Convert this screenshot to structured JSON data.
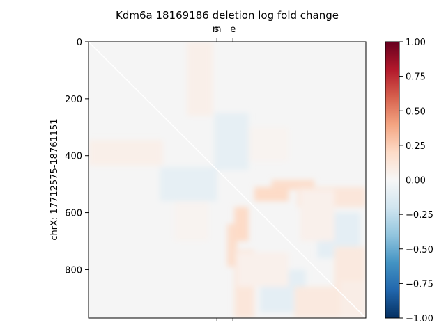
{
  "chart_data": {
    "type": "heatmap",
    "title": "Kdm6a 18169186 deletion log fold change",
    "xlabel": "",
    "ylabel": "chrX: 17712575-18761151",
    "ylim": [
      970,
      0
    ],
    "xlim": [
      0,
      970
    ],
    "yticks": [
      0,
      200,
      400,
      600,
      800
    ],
    "ytick_labels": [
      "0",
      "200",
      "400",
      "600",
      "800"
    ],
    "top_markers": [
      {
        "label": "m",
        "position": 449
      },
      {
        "label": "s",
        "position": 448
      },
      {
        "label": "e",
        "position": 505
      }
    ],
    "colorbar": {
      "cmap": "RdBu_r",
      "range": [
        -1.0,
        1.0
      ],
      "ticks": [
        1.0,
        0.75,
        0.5,
        0.25,
        0.0,
        -0.25,
        -0.5,
        -0.75,
        -1.0
      ],
      "tick_labels": [
        "1.00",
        "0.75",
        "0.50",
        "0.25",
        "0.00",
        "−0.25",
        "−0.50",
        "−0.75",
        "−1.00"
      ]
    },
    "blocks": [
      {
        "x": [
          345,
          435
        ],
        "y": [
          0,
          260
        ],
        "value": 0.06
      },
      {
        "x": [
          0,
          260
        ],
        "y": [
          345,
          435
        ],
        "value": 0.06
      },
      {
        "x": [
          440,
          560
        ],
        "y": [
          250,
          450
        ],
        "value": -0.09
      },
      {
        "x": [
          250,
          450
        ],
        "y": [
          440,
          560
        ],
        "value": -0.09
      },
      {
        "x": [
          560,
          700
        ],
        "y": [
          300,
          420
        ],
        "value": 0.03
      },
      {
        "x": [
          300,
          420
        ],
        "y": [
          560,
          700
        ],
        "value": 0.03
      },
      {
        "x": [
          640,
          790
        ],
        "y": [
          485,
          520
        ],
        "value": 0.18
      },
      {
        "x": [
          485,
          520
        ],
        "y": [
          640,
          790
        ],
        "value": 0.18
      },
      {
        "x": [
          730,
          970
        ],
        "y": [
          510,
          580
        ],
        "value": 0.12
      },
      {
        "x": [
          510,
          580
        ],
        "y": [
          730,
          970
        ],
        "value": 0.12
      },
      {
        "x": [
          800,
          950
        ],
        "y": [
          600,
          760
        ],
        "value": -0.1
      },
      {
        "x": [
          600,
          760
        ],
        "y": [
          800,
          950
        ],
        "value": -0.1
      },
      {
        "x": [
          510,
          560
        ],
        "y": [
          580,
          700
        ],
        "value": 0.2
      },
      {
        "x": [
          580,
          700
        ],
        "y": [
          510,
          560
        ],
        "value": 0.2
      },
      {
        "x": [
          520,
          700
        ],
        "y": [
          740,
          860
        ],
        "value": 0.05
      },
      {
        "x": [
          740,
          860
        ],
        "y": [
          520,
          700
        ],
        "value": 0.05
      },
      {
        "x": [
          860,
          970
        ],
        "y": [
          720,
          900
        ],
        "value": 0.1
      },
      {
        "x": [
          720,
          900
        ],
        "y": [
          860,
          970
        ],
        "value": 0.1
      },
      {
        "x": [
          880,
          970
        ],
        "y": [
          840,
          970
        ],
        "value": 0.07
      }
    ]
  }
}
